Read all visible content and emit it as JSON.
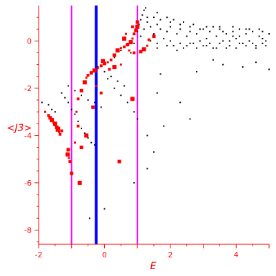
{
  "chart_data": {
    "type": "scatter",
    "title": "",
    "xlabel": "E",
    "ylabel": "<J3>",
    "xlim": [
      -2,
      5
    ],
    "ylim": [
      -8.6,
      1.5
    ],
    "grid": false,
    "legend": "none",
    "x_ticks": [
      -2,
      0,
      2,
      4
    ],
    "y_ticks": [
      0,
      -2,
      -4,
      -6,
      -8
    ],
    "colors": {
      "axis": "#ff0000",
      "background_points": "#000000",
      "highlight_points": "#ff0000",
      "magenta_lines": "#ff00ff",
      "blue_line": "#0000ff"
    },
    "vertical_lines": [
      {
        "x": -1.0,
        "color": "#ff00ff"
      },
      {
        "x": -0.25,
        "color": "#0000ff"
      },
      {
        "x": 1.0,
        "color": "#ff00ff"
      }
    ],
    "series": [
      {
        "color": "#000000",
        "marker": "dot",
        "points": [
          [
            -1.9,
            -2.6
          ],
          [
            -1.7,
            -2.7
          ],
          [
            -1.6,
            -2.9
          ],
          [
            -1.5,
            -3.0
          ],
          [
            -1.3,
            -2.2
          ],
          [
            -1.2,
            -2.4
          ],
          [
            -1.1,
            -2.6
          ],
          [
            -1.0,
            -2.9
          ],
          [
            -0.9,
            -3.1
          ],
          [
            -0.8,
            -3.4
          ],
          [
            -0.7,
            -3.7
          ],
          [
            -0.6,
            -3.9
          ],
          [
            -0.5,
            -4.1
          ],
          [
            -0.4,
            -4.3
          ],
          [
            -0.3,
            -4.4
          ],
          [
            -1.1,
            -1.9
          ],
          [
            -0.9,
            -2.1
          ],
          [
            -0.7,
            -2.3
          ],
          [
            -0.5,
            -2.5
          ],
          [
            -0.3,
            -2.6
          ],
          [
            -0.1,
            -2.8
          ],
          [
            -0.2,
            -1.1
          ],
          [
            0.0,
            -1.3
          ],
          [
            0.2,
            -1.5
          ],
          [
            0.4,
            -1.7
          ],
          [
            0.6,
            -1.9
          ],
          [
            0.1,
            -1.6
          ],
          [
            0.3,
            -2.0
          ],
          [
            0.5,
            -2.3
          ],
          [
            0.7,
            -2.6
          ],
          [
            0.9,
            -3.0
          ],
          [
            1.0,
            -3.3
          ],
          [
            1.3,
            -4.0
          ],
          [
            1.5,
            -4.7
          ],
          [
            1.3,
            -5.4
          ],
          [
            0.9,
            -6.0
          ],
          [
            0.0,
            -7.1
          ],
          [
            -0.45,
            -7.5
          ],
          [
            1.7,
            -1.4
          ],
          [
            1.6,
            -2.2
          ],
          [
            2.3,
            -2.6
          ],
          [
            1.8,
            -3.6
          ],
          [
            2.6,
            -3.3
          ],
          [
            0.1,
            -0.9
          ],
          [
            0.3,
            -0.7
          ],
          [
            0.5,
            -0.4
          ],
          [
            0.7,
            -0.2
          ],
          [
            0.8,
            -0.5
          ],
          [
            0.9,
            -0.1
          ],
          [
            1.0,
            0.4
          ],
          [
            1.05,
            0.7
          ],
          [
            1.1,
            0.9
          ],
          [
            1.15,
            1.1
          ],
          [
            1.2,
            1.3
          ],
          [
            1.1,
            0.2
          ],
          [
            1.2,
            0.5
          ],
          [
            1.3,
            0.8
          ],
          [
            1.4,
            0.6
          ],
          [
            1.5,
            0.3
          ],
          [
            1.6,
            0.7
          ],
          [
            1.7,
            0.5
          ],
          [
            1.8,
            0.1
          ],
          [
            1.9,
            0.4
          ],
          [
            2.0,
            0.6
          ],
          [
            2.1,
            -0.2
          ],
          [
            2.2,
            0.3
          ],
          [
            2.3,
            0.5
          ],
          [
            2.4,
            -0.3
          ],
          [
            2.5,
            0.2
          ],
          [
            2.6,
            0.4
          ],
          [
            2.7,
            -0.1
          ],
          [
            2.8,
            0.3
          ],
          [
            2.9,
            0.5
          ],
          [
            3.0,
            -0.2
          ],
          [
            3.1,
            0.1
          ],
          [
            3.2,
            0.4
          ],
          [
            3.3,
            -0.3
          ],
          [
            3.4,
            0.2
          ],
          [
            3.5,
            0.5
          ],
          [
            3.6,
            0.0
          ],
          [
            3.7,
            0.3
          ],
          [
            3.8,
            -0.2
          ],
          [
            3.9,
            0.4
          ],
          [
            4.0,
            0.1
          ],
          [
            4.1,
            0.5
          ],
          [
            4.2,
            -0.1
          ],
          [
            4.3,
            0.3
          ],
          [
            4.4,
            0.0
          ],
          [
            4.5,
            0.4
          ],
          [
            4.6,
            -0.2
          ],
          [
            4.7,
            0.2
          ],
          [
            4.8,
            0.4
          ],
          [
            4.9,
            0.0
          ],
          [
            5.0,
            0.3
          ],
          [
            1.6,
            -0.3
          ],
          [
            1.9,
            -0.2
          ],
          [
            2.2,
            -0.4
          ],
          [
            2.5,
            -0.2
          ],
          [
            2.8,
            -0.3
          ],
          [
            3.1,
            -0.2
          ],
          [
            3.4,
            -0.3
          ],
          [
            3.7,
            -0.3
          ],
          [
            4.0,
            -0.3
          ],
          [
            4.3,
            -0.2
          ],
          [
            4.6,
            -0.3
          ],
          [
            4.9,
            -0.2
          ],
          [
            2.8,
            -1.3
          ],
          [
            3.6,
            -1.0
          ],
          [
            4.2,
            -1.1
          ],
          [
            4.6,
            -0.9
          ],
          [
            5.0,
            -1.2
          ],
          [
            3.3,
            -0.8
          ],
          [
            1.3,
            1.0
          ],
          [
            1.5,
            1.0
          ],
          [
            1.7,
            0.9
          ],
          [
            2.0,
            0.8
          ],
          [
            2.3,
            0.7
          ],
          [
            2.7,
            0.7
          ],
          [
            3.1,
            0.6
          ],
          [
            3.5,
            0.6
          ],
          [
            3.9,
            0.6
          ],
          [
            4.3,
            0.5
          ],
          [
            4.7,
            0.5
          ],
          [
            1.25,
            1.4
          ],
          [
            1.6,
            1.2
          ],
          [
            1.9,
            1.0
          ],
          [
            2.1,
            0.9
          ],
          [
            2.4,
            0.8
          ],
          [
            2.6,
            0.6
          ],
          [
            3.0,
            0.5
          ],
          [
            3.3,
            0.6
          ],
          [
            3.6,
            0.4
          ],
          [
            3.9,
            0.2
          ],
          [
            4.1,
            0.2
          ],
          [
            4.4,
            0.5
          ],
          [
            4.8,
            0.1
          ],
          [
            1.4,
            0.0
          ],
          [
            1.6,
            -0.1
          ],
          [
            2.0,
            0.0
          ],
          [
            2.3,
            -0.1
          ],
          [
            2.6,
            -0.1
          ],
          [
            2.9,
            0.0
          ],
          [
            3.2,
            -0.1
          ],
          [
            3.5,
            -0.1
          ],
          [
            3.8,
            0.0
          ],
          [
            4.1,
            -0.1
          ],
          [
            4.5,
            -0.1
          ],
          [
            4.8,
            -0.1
          ]
        ]
      },
      {
        "color": "#ff0000",
        "marker": "square",
        "points": [
          [
            -1.8,
            -3.0
          ],
          [
            -1.7,
            -3.15
          ],
          [
            -1.65,
            -3.25
          ],
          [
            -1.6,
            -3.35
          ],
          [
            -1.55,
            -3.45
          ],
          [
            -1.5,
            -3.55
          ],
          [
            -1.45,
            -3.65
          ],
          [
            -1.42,
            -3.75
          ],
          [
            -1.38,
            -3.85
          ],
          [
            -1.35,
            -3.95
          ],
          [
            -1.4,
            -3.7
          ],
          [
            -1.5,
            -3.5
          ],
          [
            -1.6,
            -3.3
          ],
          [
            -1.3,
            -3.8
          ],
          [
            -1.1,
            -4.6
          ],
          [
            -1.12,
            -4.8
          ],
          [
            -1.08,
            -4.95
          ],
          [
            -1.05,
            -5.1
          ],
          [
            -1.0,
            -5.6
          ],
          [
            -0.75,
            -6.0
          ],
          [
            -0.9,
            -4.3
          ],
          [
            -0.8,
            -3.6
          ],
          [
            -0.7,
            -4.5
          ],
          [
            -0.55,
            -4.0
          ],
          [
            -0.85,
            -3.0
          ],
          [
            -0.8,
            -2.45
          ],
          [
            -0.7,
            -2.1
          ],
          [
            -0.6,
            -1.75
          ],
          [
            -0.55,
            -1.55
          ],
          [
            -0.5,
            -1.45
          ],
          [
            -0.4,
            -1.35
          ],
          [
            -0.3,
            -1.25
          ],
          [
            -0.2,
            -1.15
          ],
          [
            -0.1,
            -1.05
          ],
          [
            0.0,
            -0.95
          ],
          [
            -0.05,
            -0.85
          ],
          [
            0.1,
            -0.9
          ],
          [
            0.2,
            -0.8
          ],
          [
            0.3,
            -0.6
          ],
          [
            0.4,
            -0.4
          ],
          [
            0.5,
            -0.3
          ],
          [
            0.6,
            -0.25
          ],
          [
            0.7,
            -0.15
          ],
          [
            0.8,
            -0.05
          ],
          [
            0.85,
            0.1
          ],
          [
            0.9,
            0.3
          ],
          [
            0.95,
            0.45
          ],
          [
            1.0,
            0.6
          ],
          [
            0.75,
            -0.4
          ],
          [
            0.9,
            -0.5
          ],
          [
            1.1,
            -0.45
          ],
          [
            1.2,
            -0.35
          ],
          [
            1.3,
            -0.2
          ],
          [
            1.35,
            0.05
          ],
          [
            1.5,
            0.2
          ],
          [
            0.3,
            -1.1
          ],
          [
            0.5,
            -1.0
          ],
          [
            0.15,
            -1.2
          ],
          [
            0.45,
            -5.1
          ],
          [
            0.85,
            -2.45
          ],
          [
            -0.25,
            -1.9
          ],
          [
            -0.1,
            -2.2
          ],
          [
            -0.35,
            -2.8
          ],
          [
            0.6,
            0.1
          ],
          [
            0.65,
            0.3
          ],
          [
            0.85,
            0.6
          ],
          [
            1.0,
            0.8
          ]
        ]
      }
    ]
  }
}
